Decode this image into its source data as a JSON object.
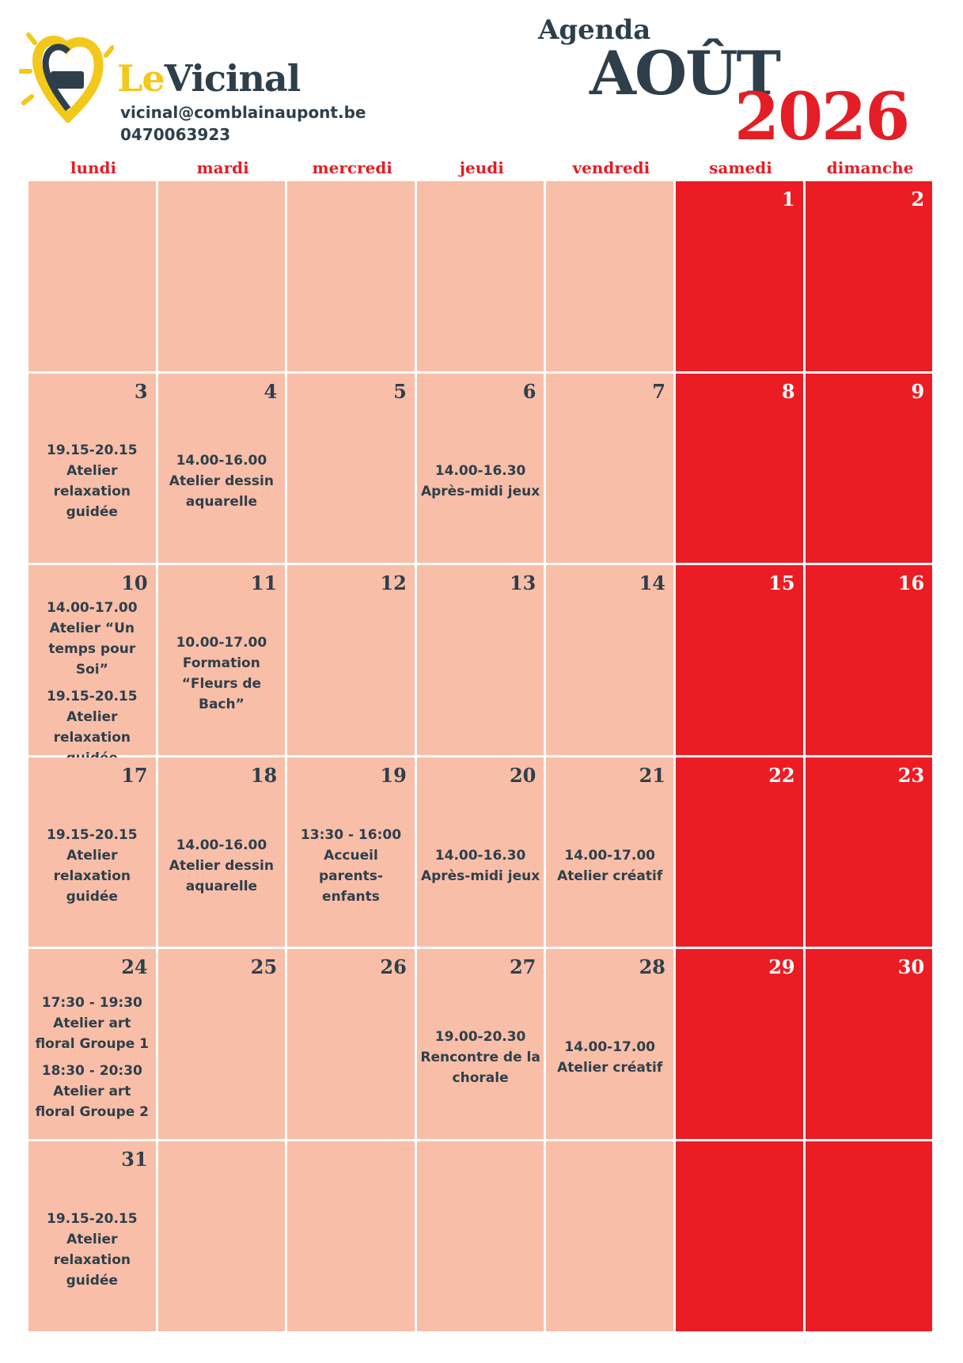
{
  "header": {
    "brand_prefix": "Le",
    "brand_name": "Vicinal",
    "email": "vicinal@comblainaupont.be",
    "phone": "0470063923",
    "agenda": "Agenda",
    "month": "AOÛT",
    "year": "2026"
  },
  "calendar": {
    "weekdays": [
      "lundi",
      "mardi",
      "mercredi",
      "jeudi",
      "vendredi",
      "samedi",
      "dimanche"
    ],
    "weeks": [
      [
        null,
        null,
        null,
        null,
        null,
        {
          "day": "1",
          "events": []
        },
        {
          "day": "2",
          "events": []
        }
      ],
      [
        {
          "day": "3",
          "events": [
            {
              "time": "19.15-20.15",
              "title": "Atelier relaxation guidée"
            }
          ]
        },
        {
          "day": "4",
          "events": [
            {
              "time": "14.00-16.00",
              "title": "Atelier dessin aquarelle"
            }
          ]
        },
        {
          "day": "5",
          "events": []
        },
        {
          "day": "6",
          "events": [
            {
              "time": "14.00-16.30",
              "title": "Après-midi jeux"
            }
          ]
        },
        {
          "day": "7",
          "events": []
        },
        {
          "day": "8",
          "events": []
        },
        {
          "day": "9",
          "events": []
        }
      ],
      [
        {
          "day": "10",
          "events": [
            {
              "time": "14.00-17.00",
              "title": "Atelier “Un temps pour Soi”"
            },
            {
              "time": "19.15-20.15",
              "title": "Atelier relaxation guidée"
            }
          ]
        },
        {
          "day": "11",
          "events": [
            {
              "time": "10.00-17.00",
              "title": "Formation “Fleurs de Bach”"
            }
          ]
        },
        {
          "day": "12",
          "events": []
        },
        {
          "day": "13",
          "events": []
        },
        {
          "day": "14",
          "events": []
        },
        {
          "day": "15",
          "events": []
        },
        {
          "day": "16",
          "events": []
        }
      ],
      [
        {
          "day": "17",
          "events": [
            {
              "time": "19.15-20.15",
              "title": "Atelier relaxation guidée"
            }
          ]
        },
        {
          "day": "18",
          "events": [
            {
              "time": "14.00-16.00",
              "title": "Atelier dessin aquarelle"
            }
          ]
        },
        {
          "day": "19",
          "events": [
            {
              "time": "13:30 - 16:00",
              "title": "Accueil parents-enfants"
            }
          ]
        },
        {
          "day": "20",
          "events": [
            {
              "time": "14.00-16.30",
              "title": "Après-midi jeux"
            }
          ]
        },
        {
          "day": "21",
          "events": [
            {
              "time": "14.00-17.00",
              "title": "Atelier créatif"
            }
          ]
        },
        {
          "day": "22",
          "events": []
        },
        {
          "day": "23",
          "events": []
        }
      ],
      [
        {
          "day": "24",
          "events": [
            {
              "time": "17:30 - 19:30",
              "title": "Atelier art floral Groupe 1"
            },
            {
              "time": "18:30 - 20:30",
              "title": "Atelier art floral Groupe 2"
            }
          ]
        },
        {
          "day": "25",
          "events": []
        },
        {
          "day": "26",
          "events": []
        },
        {
          "day": "27",
          "events": [
            {
              "time": "19.00-20.30",
              "title": "Rencontre de la chorale"
            }
          ]
        },
        {
          "day": "28",
          "events": [
            {
              "time": "14.00-17.00",
              "title": "Atelier créatif"
            }
          ]
        },
        {
          "day": "29",
          "events": []
        },
        {
          "day": "30",
          "events": []
        }
      ],
      [
        {
          "day": "31",
          "events": [
            {
              "time": "19.15-20.15",
              "title": "Atelier relaxation guidée"
            }
          ]
        },
        null,
        null,
        null,
        null,
        null,
        null
      ]
    ]
  }
}
